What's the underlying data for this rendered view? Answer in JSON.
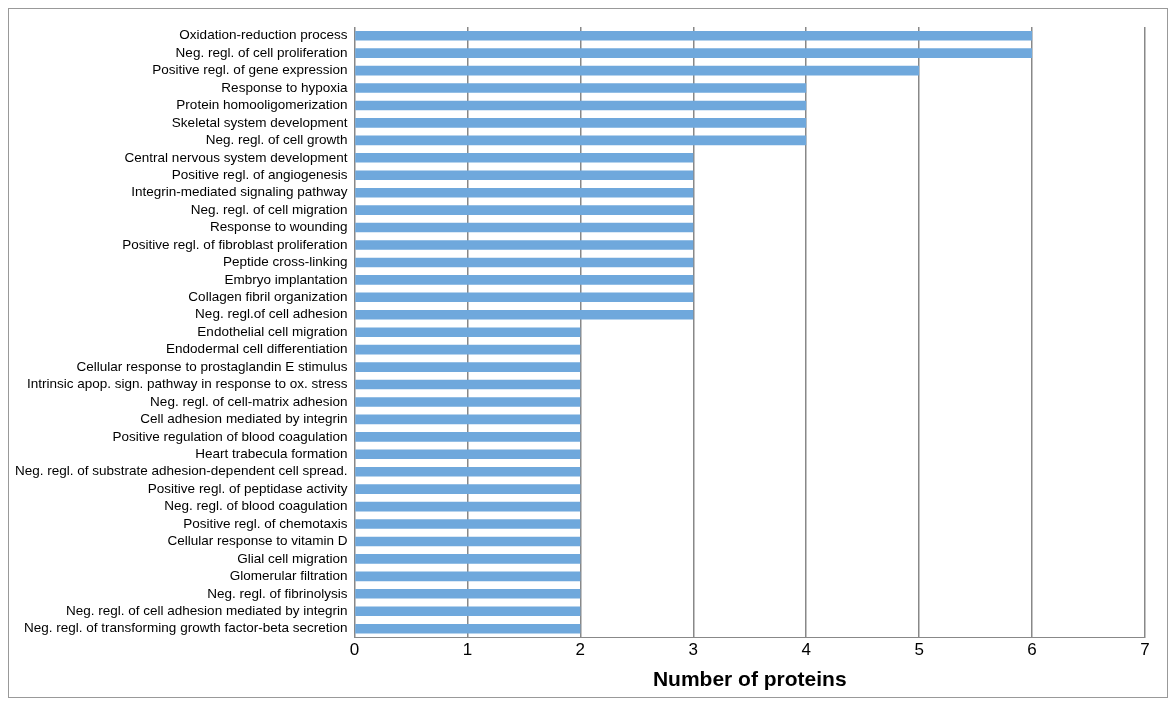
{
  "chart_data": {
    "type": "bar",
    "orientation": "horizontal",
    "xlabel": "Number of proteins",
    "categories": [
      "Oxidation-reduction process",
      "Neg. regl. of cell proliferation",
      "Positive regl. of gene expression",
      "Response to hypoxia",
      "Protein homooligomerization",
      "Skeletal system development",
      "Neg. regl. of cell growth",
      "Central nervous system development",
      "Positive regl. of angiogenesis",
      "Integrin-mediated signaling pathway",
      "Neg. regl. of cell migration",
      "Response to wounding",
      "Positive regl. of fibroblast proliferation",
      "Peptide cross-linking",
      "Embryo implantation",
      "Collagen fibril organization",
      "Neg. regl.of cell adhesion",
      "Endothelial cell migration",
      "Endodermal cell differentiation",
      "Cellular response to prostaglandin E stimulus",
      "Intrinsic apop. sign. pathway in response to ox. stress",
      "Neg. regl. of cell-matrix adhesion",
      "Cell adhesion mediated by integrin",
      "Positive regulation of blood coagulation",
      "Heart trabecula formation",
      "Neg. regl. of substrate adhesion-dependent cell spread.",
      "Positive regl. of peptidase activity",
      "Neg. regl. of blood coagulation",
      "Positive regl. of chemotaxis",
      "Cellular response to vitamin D",
      "Glial cell migration",
      "Glomerular filtration",
      "Neg. regl. of fibrinolysis",
      "Neg. regl. of cell adhesion mediated by integrin",
      "Neg. regl. of transforming growth factor-beta secretion"
    ],
    "values": [
      6,
      6,
      5,
      4,
      4,
      4,
      4,
      3,
      3,
      3,
      3,
      3,
      3,
      3,
      3,
      3,
      3,
      2,
      2,
      2,
      2,
      2,
      2,
      2,
      2,
      2,
      2,
      2,
      2,
      2,
      2,
      2,
      2,
      2,
      2
    ],
    "color": "#6fa8dc",
    "xlim": [
      0,
      7
    ],
    "xticks": [
      0,
      1,
      2,
      3,
      4,
      5,
      6,
      7
    ],
    "grid": "x",
    "legend": false
  }
}
